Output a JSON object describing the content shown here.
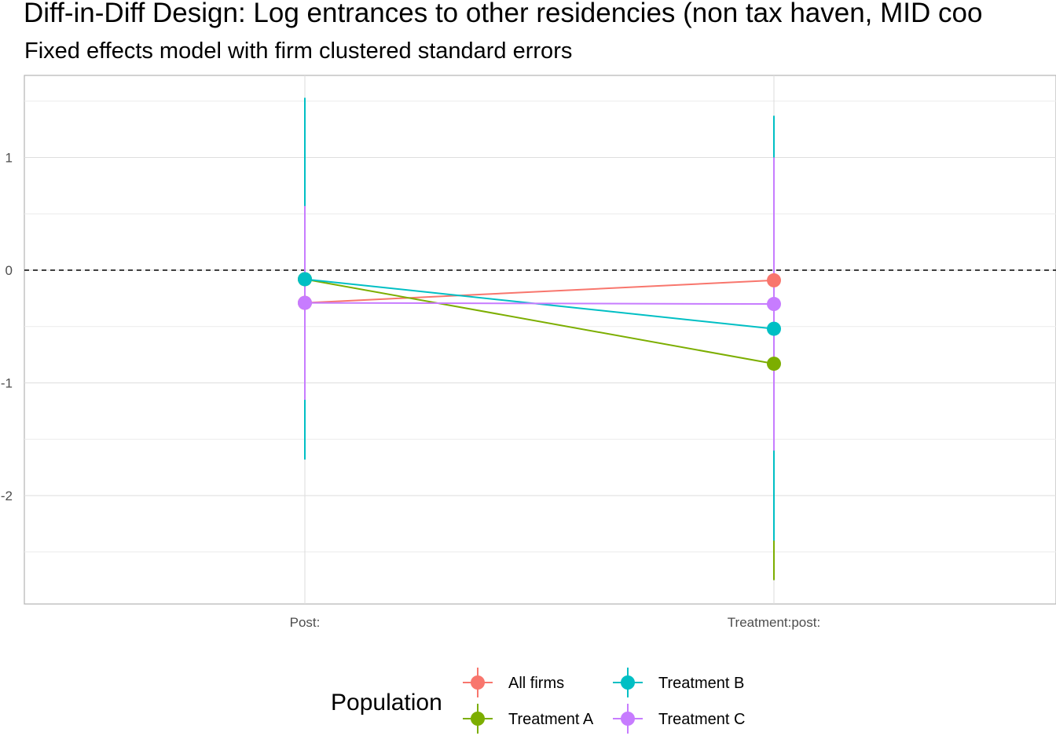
{
  "chart_data": {
    "type": "line",
    "title": "Diff-in-Diff Design: Log entrances to other residencies (non tax haven, MID coo",
    "subtitle": "Fixed effects model with firm clustered standard errors",
    "xlabel": "",
    "ylabel": "",
    "categories": [
      "Post:",
      "Treatment:post:"
    ],
    "ylim": [
      -2.95,
      1.75
    ],
    "yticks": [
      1,
      0,
      -1,
      -2
    ],
    "ytick_labels": [
      "1",
      "0",
      "-1",
      "-2"
    ],
    "reference_line": 0,
    "grid": true,
    "legend": {
      "title": "Population",
      "position": "bottom"
    },
    "series": [
      {
        "name": "All firms",
        "color": "#F8766D",
        "values": [
          -0.29,
          -0.09
        ],
        "lower": [
          -1.15,
          -1.6
        ],
        "upper": [
          0.57,
          1.0
        ]
      },
      {
        "name": "Treatment A",
        "color": "#7CAE00",
        "values": [
          -0.08,
          -0.83
        ],
        "lower": [
          -1.15,
          -2.75
        ],
        "upper": [
          0.57,
          1.0
        ]
      },
      {
        "name": "Treatment B",
        "color": "#00BFC4",
        "values": [
          -0.08,
          -0.52
        ],
        "lower": [
          -1.68,
          -2.4
        ],
        "upper": [
          1.53,
          1.37
        ]
      },
      {
        "name": "Treatment C",
        "color": "#C77CFF",
        "values": [
          -0.29,
          -0.3
        ],
        "lower": [
          -1.15,
          -1.6
        ],
        "upper": [
          0.57,
          1.0
        ]
      }
    ]
  }
}
